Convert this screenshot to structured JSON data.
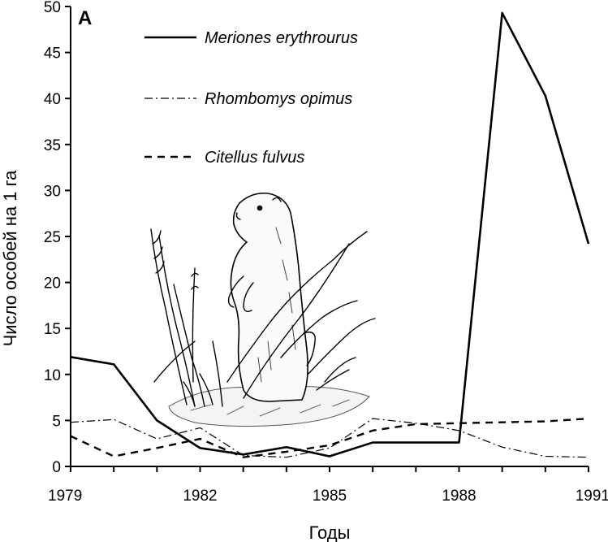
{
  "chart_data": {
    "type": "line",
    "panel_label": "A",
    "xlabel": "Годы",
    "ylabel": "Число особей на 1 га",
    "xlim": [
      1979,
      1991
    ],
    "ylim": [
      0,
      50
    ],
    "x_ticks": [
      1979,
      1982,
      1985,
      1988,
      1991
    ],
    "y_ticks": [
      0,
      5,
      10,
      15,
      20,
      25,
      30,
      35,
      40,
      45,
      50
    ],
    "grid": false,
    "legend_position": "top-center",
    "x": [
      1979,
      1980,
      1981,
      1982,
      1983,
      1984,
      1985,
      1986,
      1987,
      1988,
      1989,
      1990,
      1991
    ],
    "series": [
      {
        "name": "Meriones erythrourus",
        "style": "solid",
        "color": "#000000",
        "values": [
          11.9,
          11.1,
          5.0,
          2.0,
          1.3,
          2.1,
          1.1,
          2.6,
          2.6,
          2.6,
          49.3,
          40.3,
          24.2
        ]
      },
      {
        "name": "Rhombomys opimus",
        "style": "dash-dot",
        "color": "#000000",
        "values": [
          4.8,
          5.1,
          3.0,
          4.2,
          1.2,
          1.0,
          2.0,
          5.2,
          4.7,
          3.9,
          2.1,
          1.1,
          1.0
        ]
      },
      {
        "name": "Citellus fulvus",
        "style": "dashed",
        "color": "#000000",
        "values": [
          3.3,
          1.1,
          2.0,
          3.0,
          1.0,
          1.6,
          2.3,
          3.9,
          4.6,
          4.7,
          4.8,
          4.9,
          5.2
        ]
      }
    ]
  },
  "illustration": {
    "icon": "ground-squirrel-icon"
  }
}
